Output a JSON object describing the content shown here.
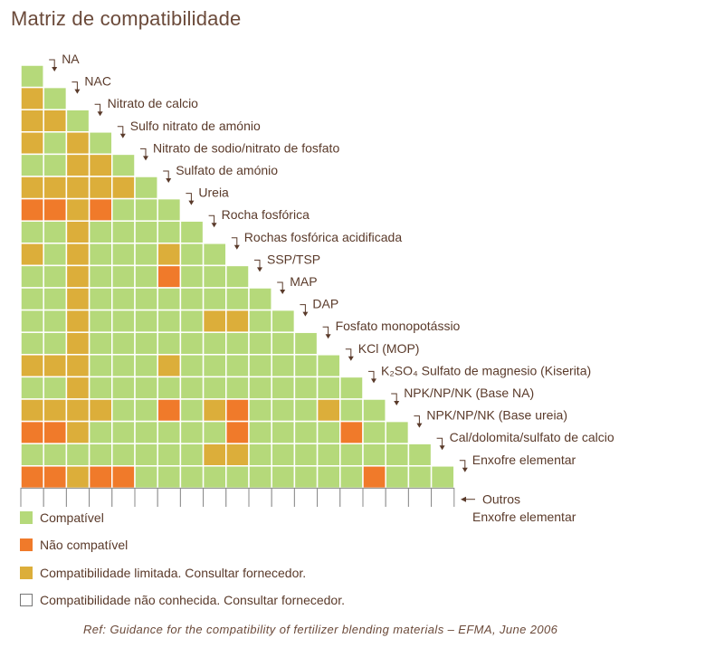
{
  "chart_data": {
    "type": "heatmap",
    "title": "Matriz de compatibilidade",
    "rows": [
      "NA",
      "NAC",
      "Nitrato de calcio",
      "Sulfo nitrato de amónio",
      "Nitrato de sodio/nitrato de fosfato",
      "Sulfato de amónio",
      "Ureia",
      "Rocha fosfórica",
      "Rochas fosfórica acidificada",
      "SSP/TSP",
      "MAP",
      "DAP",
      "Fosfato monopotássio",
      "KCl (MOP)",
      "K₂SO₄ Sulfato de magnesio (Kiserita)",
      "NPK/NP/NK (Base NA)",
      "NPK/NP/NK (Base ureia)",
      "Cal/dolomita/sulfato de calcio",
      "Enxofre elementar",
      "Outros"
    ],
    "status_codes": {
      "C": "Compatível",
      "N": "Não compatível",
      "L": "Compatibilidade limitada. Consultar fornecedor.",
      "U": "Compatibilidade não conhecida. Consultar fornecedor."
    },
    "matrix": [
      [],
      [
        "L"
      ],
      [
        "L",
        "L"
      ],
      [
        "L",
        "C",
        "L"
      ],
      [
        "C",
        "C",
        "L",
        "L"
      ],
      [
        "L",
        "L",
        "L",
        "L",
        "L"
      ],
      [
        "N",
        "N",
        "L",
        "N",
        "C",
        "C"
      ],
      [
        "C",
        "C",
        "L",
        "C",
        "C",
        "C",
        "C"
      ],
      [
        "L",
        "C",
        "L",
        "C",
        "C",
        "C",
        "L",
        "C"
      ],
      [
        "C",
        "C",
        "L",
        "C",
        "C",
        "C",
        "N",
        "C",
        "C"
      ],
      [
        "C",
        "C",
        "L",
        "C",
        "C",
        "C",
        "C",
        "C",
        "C",
        "C"
      ],
      [
        "C",
        "C",
        "L",
        "C",
        "C",
        "C",
        "C",
        "C",
        "L",
        "L",
        "C"
      ],
      [
        "C",
        "C",
        "L",
        "C",
        "C",
        "C",
        "C",
        "C",
        "C",
        "C",
        "C",
        "C"
      ],
      [
        "L",
        "L",
        "L",
        "C",
        "C",
        "C",
        "L",
        "C",
        "C",
        "C",
        "C",
        "C",
        "C"
      ],
      [
        "C",
        "C",
        "L",
        "C",
        "C",
        "C",
        "C",
        "C",
        "C",
        "C",
        "C",
        "C",
        "C",
        "C"
      ],
      [
        "L",
        "L",
        "L",
        "L",
        "C",
        "C",
        "N",
        "C",
        "L",
        "N",
        "C",
        "C",
        "C",
        "L",
        "C"
      ],
      [
        "N",
        "N",
        "L",
        "C",
        "C",
        "C",
        "C",
        "C",
        "C",
        "N",
        "C",
        "C",
        "C",
        "C",
        "N",
        "C"
      ],
      [
        "C",
        "C",
        "C",
        "C",
        "C",
        "C",
        "C",
        "C",
        "L",
        "L",
        "C",
        "C",
        "C",
        "C",
        "C",
        "C",
        "C"
      ],
      [
        "N",
        "N",
        "L",
        "N",
        "N",
        "C",
        "C",
        "C",
        "C",
        "C",
        "C",
        "C",
        "C",
        "C",
        "C",
        "N",
        "C",
        "C"
      ],
      [
        "U",
        "U",
        "U",
        "U",
        "U",
        "U",
        "U",
        "U",
        "U",
        "U",
        "U",
        "U",
        "U",
        "U",
        "U",
        "U",
        "U",
        "U",
        "U"
      ]
    ]
  },
  "colors": {
    "C": "#b5d97a",
    "N": "#f07a2a",
    "L": "#dcae3a",
    "U": "#ffffff"
  },
  "legend": {
    "compatible": "Compatível",
    "not_compatible": "Não compatível",
    "limited": "Compatibilidade limitada. Consultar fornecedor.",
    "unknown": "Compatibilidade não conhecida. Consultar fornecedor."
  },
  "note": "Enxofre elementar",
  "reference": "Ref: Guidance for the compatibility of fertilizer blending materials – EFMA, June 2006"
}
